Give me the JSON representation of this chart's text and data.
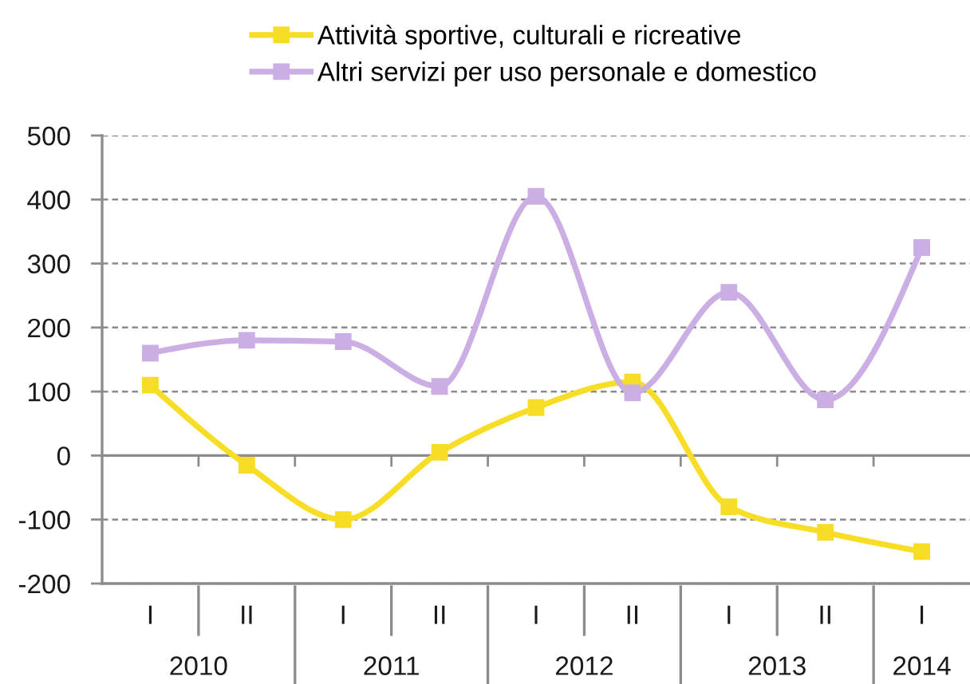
{
  "chart_data": {
    "type": "line",
    "categories": [
      "I",
      "II",
      "I",
      "II",
      "I",
      "II",
      "I",
      "II",
      "I"
    ],
    "annotations": [
      "2010",
      "2011",
      "2012",
      "2013",
      "2014"
    ],
    "series": [
      {
        "name": "Attività sportive, culturali e ricreative",
        "color": "#f7dd26",
        "values": [
          110,
          -15,
          -100,
          5,
          75,
          115,
          -80,
          -120,
          -150
        ]
      },
      {
        "name": "Altri servizi per uso personale e domestico",
        "color": "#cbaee4",
        "values": [
          160,
          180,
          178,
          108,
          405,
          98,
          255,
          87,
          325
        ]
      }
    ],
    "ylim": [
      -200,
      500
    ],
    "yticks": [
      -200,
      -100,
      0,
      100,
      200,
      300,
      400,
      500
    ],
    "grid": "y",
    "legend": "top",
    "marker": "square",
    "line_style": "solid"
  }
}
